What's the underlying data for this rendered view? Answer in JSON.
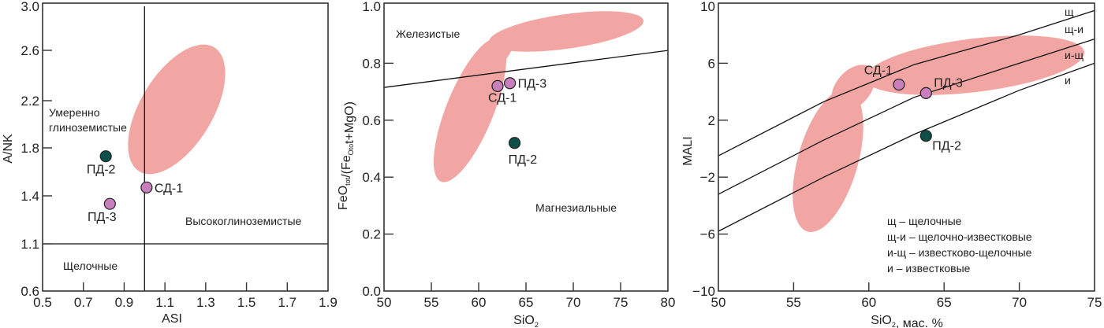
{
  "colors": {
    "field": "#f2a6a3",
    "point_pd2": "#0f4f49",
    "point_pink": "#c97fbb",
    "axis": "#333333"
  },
  "chart_data": [
    {
      "type": "scatter",
      "title": "",
      "xlabel": "ASI",
      "ylabel": "A/NK",
      "xlim": [
        0.5,
        1.9
      ],
      "ylim": [
        0.6,
        3.0
      ],
      "x_ticks": [
        "0.5",
        "0.7",
        "0.9",
        "1.1",
        "1.3",
        "1.5",
        "1.7",
        "1.9"
      ],
      "x_tick_values": [
        0.5,
        0.7,
        0.9,
        1.1,
        1.3,
        1.5,
        1.7,
        1.9
      ],
      "y_ticks": [
        "3.0",
        "2.6",
        "2.2",
        "1.8",
        "1.4",
        "1.1",
        "0.6"
      ],
      "y_tick_values": [
        3.0,
        2.6,
        2.2,
        1.8,
        1.4,
        1.1,
        0.6
      ],
      "boundaries": [
        {
          "name": "ASI = 1.0",
          "x": [
            1.0,
            1.0
          ],
          "y": [
            0.6,
            3.0
          ]
        },
        {
          "name": "A/NK = 1.1",
          "x": [
            0.5,
            1.9
          ],
          "y": [
            1.1,
            1.1
          ]
        }
      ],
      "regions": [
        "Умеренно",
        "глиноземистые",
        "Высокоглиноземистые",
        "Щелочные"
      ],
      "field": {
        "center": [
          1.16,
          2.2
        ],
        "description": "shaded field"
      },
      "points": [
        {
          "label": "ПД-2",
          "x": 0.81,
          "y": 1.73,
          "color": "point_pd2"
        },
        {
          "label": "ПД-3",
          "x": 0.83,
          "y": 1.35,
          "color": "point_pink"
        },
        {
          "label": "СД-1",
          "x": 1.01,
          "y": 1.47,
          "color": "point_pink"
        }
      ],
      "grid": false
    },
    {
      "type": "scatter",
      "title": "",
      "xlabel": "SiO2",
      "ylabel": "FeOtot/(FeOtot+MgO)",
      "xlim": [
        50,
        80
      ],
      "ylim": [
        0.0,
        1.0
      ],
      "x_ticks": [
        "50",
        "55",
        "60",
        "65",
        "70",
        "75",
        "80"
      ],
      "x_tick_values": [
        50,
        55,
        60,
        65,
        70,
        75,
        80
      ],
      "y_ticks": [
        "1.0",
        "0.8",
        "0.6",
        "0.4",
        "0.2",
        "0.0"
      ],
      "y_tick_values": [
        1.0,
        0.8,
        0.6,
        0.4,
        0.2,
        0.0
      ],
      "boundaries": [
        {
          "name": "ferroan-magnesian",
          "x": [
            50,
            80
          ],
          "y": [
            0.715,
            0.845
          ]
        }
      ],
      "regions": [
        "Железистые",
        "Магнезиальные"
      ],
      "points": [
        {
          "label": "СД-1",
          "x": 62.0,
          "y": 0.72,
          "color": "point_pink"
        },
        {
          "label": "ПД-3",
          "x": 63.3,
          "y": 0.73,
          "color": "point_pink"
        },
        {
          "label": "ПД-2",
          "x": 63.8,
          "y": 0.52,
          "color": "point_pd2"
        }
      ],
      "grid": false
    },
    {
      "type": "scatter",
      "title": "",
      "xlabel": "SiO2, мас. %",
      "ylabel": "MALI",
      "xlim": [
        50,
        75
      ],
      "ylim": [
        -10,
        10
      ],
      "x_ticks": [
        "50",
        "55",
        "60",
        "65",
        "70",
        "75"
      ],
      "x_tick_values": [
        50,
        55,
        60,
        65,
        70,
        75
      ],
      "y_ticks": [
        "10",
        "6",
        "2",
        "−2",
        "−6",
        "−10"
      ],
      "y_tick_values": [
        10,
        6,
        2,
        -2,
        -6,
        -10
      ],
      "boundaries": [
        {
          "name": "щ / щ-и",
          "x": [
            50,
            57,
            63,
            70,
            75
          ],
          "y": [
            -0.5,
            3.3,
            5.9,
            8.0,
            9.7
          ]
        },
        {
          "name": "щ-и / и-щ",
          "x": [
            50,
            57,
            63,
            70,
            75
          ],
          "y": [
            -3.2,
            0.6,
            3.6,
            6.0,
            7.7
          ]
        },
        {
          "name": "и-щ / и",
          "x": [
            50,
            57,
            63,
            70,
            75
          ],
          "y": [
            -5.8,
            -2.0,
            1.0,
            4.1,
            6.0
          ]
        }
      ],
      "line_labels": [
        "щ",
        "щ-и",
        "и-щ",
        "и"
      ],
      "legend": [
        "щ – щелочные",
        "щ-и – щелочно-известковые",
        "и-щ – известково-щелочные",
        "и – известковые"
      ],
      "legend_position": "bottom-right",
      "points": [
        {
          "label": "СД-1",
          "x": 62.0,
          "y": 4.5,
          "color": "point_pink"
        },
        {
          "label": "ПД-3",
          "x": 63.8,
          "y": 3.9,
          "color": "point_pink"
        },
        {
          "label": "ПД-2",
          "x": 63.8,
          "y": 0.9,
          "color": "point_pd2"
        }
      ],
      "grid": false
    }
  ]
}
